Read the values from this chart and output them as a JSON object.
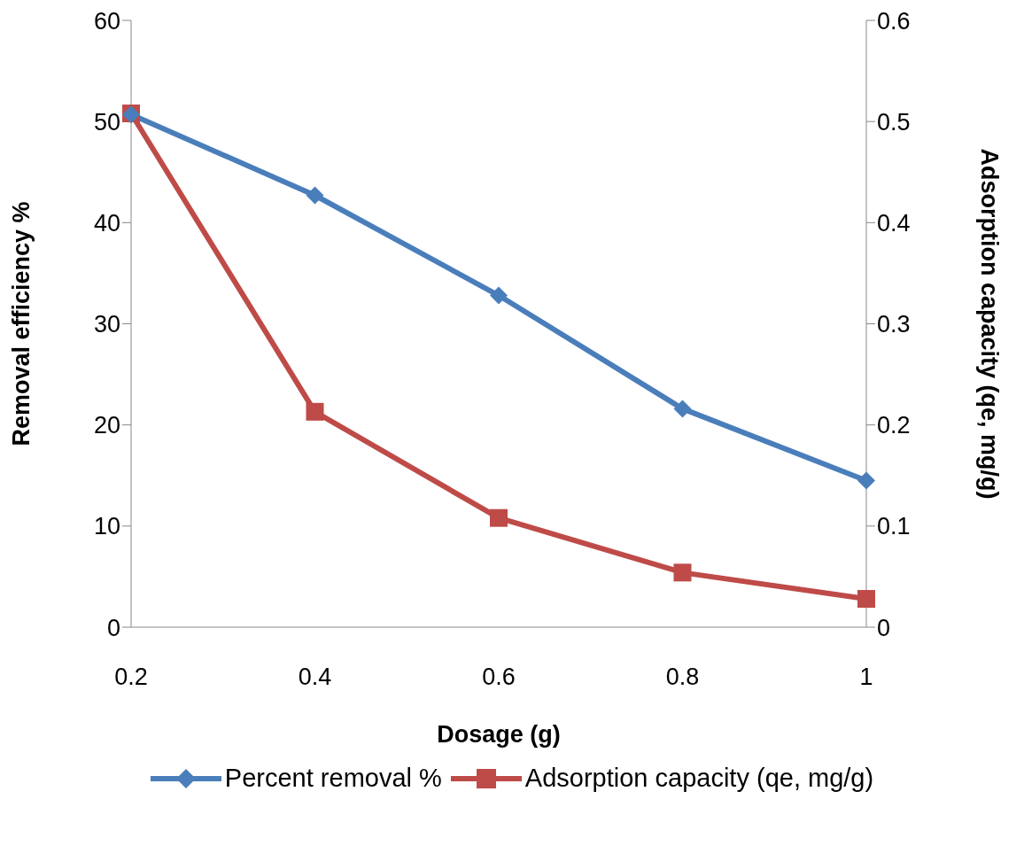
{
  "chart_data": {
    "type": "line",
    "xlabel": "Dosage (g)",
    "ylabel": "Removal efficiency %",
    "y2label": "Adsorption capacity (qe, mg/g)",
    "categories": [
      "0.2",
      "0.4",
      "0.6",
      "0.8",
      "1"
    ],
    "series": [
      {
        "name": "Percent removal %",
        "color": "#4a7ebb",
        "marker": "diamond",
        "values": [
          50.7,
          42.7,
          32.8,
          21.6,
          14.5
        ]
      },
      {
        "name": "Adsorption capacity (qe, mg/g)",
        "color": "#be4b48",
        "marker": "square",
        "axis": "y2",
        "values": [
          0.508,
          0.213,
          0.108,
          0.054,
          0.028
        ]
      }
    ],
    "ylim": [
      0,
      60
    ],
    "yticks": [
      0,
      10,
      20,
      30,
      40,
      50,
      60
    ],
    "y2lim": [
      0,
      0.6
    ],
    "y2ticks": [
      0,
      0.1,
      0.2,
      0.3,
      0.4,
      0.5,
      0.6
    ],
    "grid": false,
    "legend": "bottom",
    "line_style": "solid"
  }
}
